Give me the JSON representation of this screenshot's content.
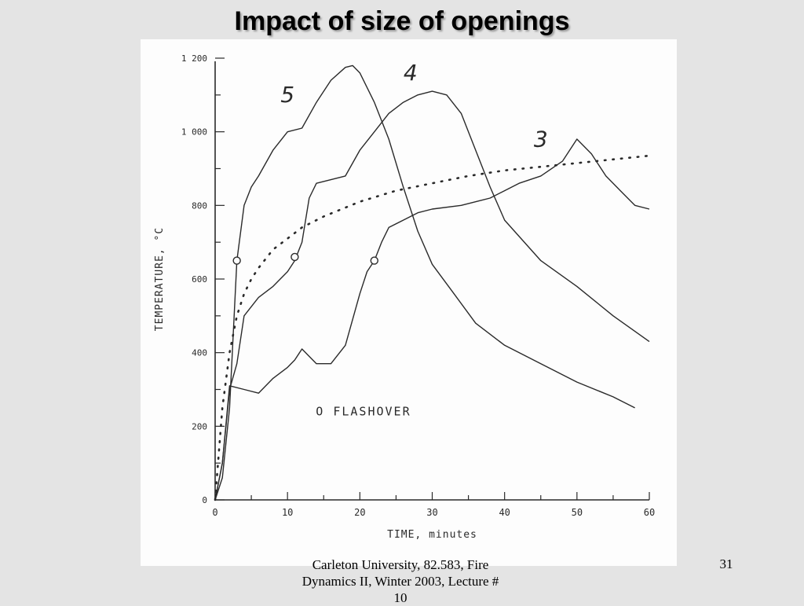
{
  "slide": {
    "title": "Impact of size of openings",
    "footer_line1": "Carleton University, 82.583, Fire",
    "footer_line2": "Dynamics II, Winter 2003, Lecture #",
    "footer_line3": "10",
    "number": "31"
  },
  "chart_data": {
    "type": "line",
    "title": "",
    "xlabel": "TIME, minutes",
    "ylabel": "TEMPERATURE, °C",
    "xlim": [
      0,
      60
    ],
    "ylim": [
      0,
      1200
    ],
    "xticks": [
      0,
      10,
      20,
      30,
      40,
      50,
      60
    ],
    "yticks": [
      0,
      200,
      400,
      600,
      800,
      1000,
      1200
    ],
    "ytick_labels": [
      "0",
      "200",
      "400",
      "600",
      "800",
      "1 000",
      "1 200"
    ],
    "grid": false,
    "annotation": "O FLASHOVER",
    "series": [
      {
        "name": "5",
        "x": [
          0,
          1,
          2,
          3,
          4,
          5,
          6,
          8,
          10,
          12,
          14,
          16,
          18,
          19,
          20,
          22,
          24,
          26,
          28,
          30,
          33,
          36,
          40,
          45,
          50,
          55,
          58
        ],
        "y": [
          0,
          60,
          250,
          650,
          800,
          850,
          880,
          950,
          1000,
          1010,
          1080,
          1140,
          1175,
          1180,
          1160,
          1080,
          980,
          850,
          730,
          640,
          560,
          480,
          420,
          370,
          320,
          280,
          250
        ],
        "flashover": [
          3,
          650
        ]
      },
      {
        "name": "4",
        "x": [
          0,
          1,
          2,
          3,
          4,
          6,
          8,
          10,
          11,
          12,
          13,
          14,
          16,
          18,
          20,
          22,
          24,
          26,
          28,
          30,
          32,
          34,
          36,
          38,
          40,
          45,
          50,
          55,
          60
        ],
        "y": [
          0,
          100,
          300,
          370,
          500,
          550,
          580,
          620,
          650,
          700,
          820,
          860,
          870,
          880,
          950,
          1000,
          1050,
          1080,
          1100,
          1110,
          1100,
          1050,
          950,
          850,
          760,
          650,
          580,
          500,
          430
        ],
        "flashover": [
          11,
          660
        ]
      },
      {
        "name": "3",
        "x": [
          0,
          1,
          2,
          4,
          6,
          8,
          10,
          11,
          12,
          14,
          16,
          18,
          20,
          21,
          22,
          23,
          24,
          26,
          28,
          30,
          34,
          38,
          40,
          42,
          45,
          48,
          50,
          52,
          54,
          56,
          58,
          60
        ],
        "y": [
          0,
          100,
          310,
          300,
          290,
          330,
          360,
          380,
          410,
          370,
          370,
          420,
          560,
          620,
          650,
          700,
          740,
          760,
          780,
          790,
          800,
          820,
          840,
          860,
          880,
          920,
          980,
          940,
          880,
          840,
          800,
          790
        ],
        "flashover": [
          22,
          650
        ]
      },
      {
        "name": "",
        "style": "dotted",
        "x": [
          0,
          1,
          2,
          3,
          4,
          5,
          6,
          8,
          10,
          12,
          15,
          20,
          25,
          30,
          35,
          40,
          45,
          50,
          55,
          60
        ],
        "y": [
          0,
          250,
          400,
          500,
          560,
          600,
          630,
          680,
          710,
          740,
          770,
          810,
          840,
          860,
          880,
          895,
          905,
          915,
          925,
          935
        ]
      }
    ]
  }
}
